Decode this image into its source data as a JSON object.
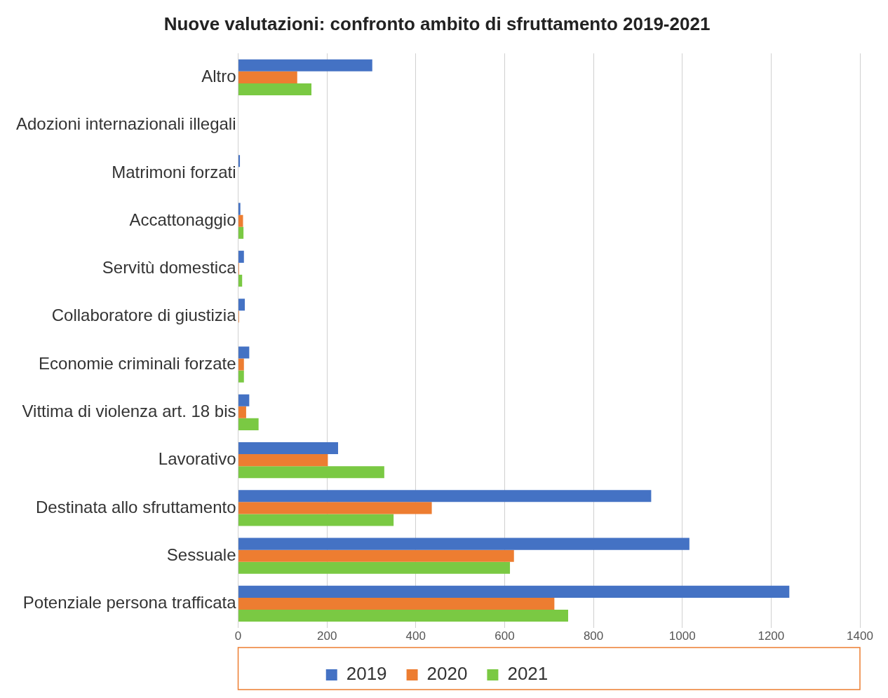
{
  "chart_data": {
    "type": "bar",
    "orientation": "horizontal",
    "title": "Nuove valutazioni: confronto ambito di sfruttamento 2019-2021",
    "categories": [
      "Altro",
      "Adozioni internazionali illegali",
      "Matrimoni forzati",
      "Accattonaggio",
      "Servitù domestica",
      "Collaboratore di giustizia",
      "Economie criminali forzate",
      "Vittima di violenza art. 18 bis",
      "Lavorativo",
      "Destinata allo sfruttamento",
      "Sessuale",
      "Potenziale persona trafficata"
    ],
    "series": [
      {
        "name": "2019",
        "color": "#4472c4",
        "values": [
          302,
          0,
          4,
          5,
          13,
          15,
          25,
          25,
          225,
          930,
          1016,
          1241
        ]
      },
      {
        "name": "2020",
        "color": "#ed7d31",
        "values": [
          133,
          0,
          null,
          11,
          2,
          2,
          13,
          18,
          202,
          436,
          621,
          712
        ]
      },
      {
        "name": "2021",
        "color": "#7ac943",
        "values": [
          165,
          0,
          null,
          12,
          9,
          null,
          13,
          46,
          329,
          350,
          612,
          743
        ]
      }
    ],
    "xlim": [
      0,
      1400
    ],
    "xticks": [
      0,
      200,
      400,
      600,
      800,
      1000,
      1200,
      1400
    ],
    "grid": "x",
    "legend": "bottom"
  }
}
